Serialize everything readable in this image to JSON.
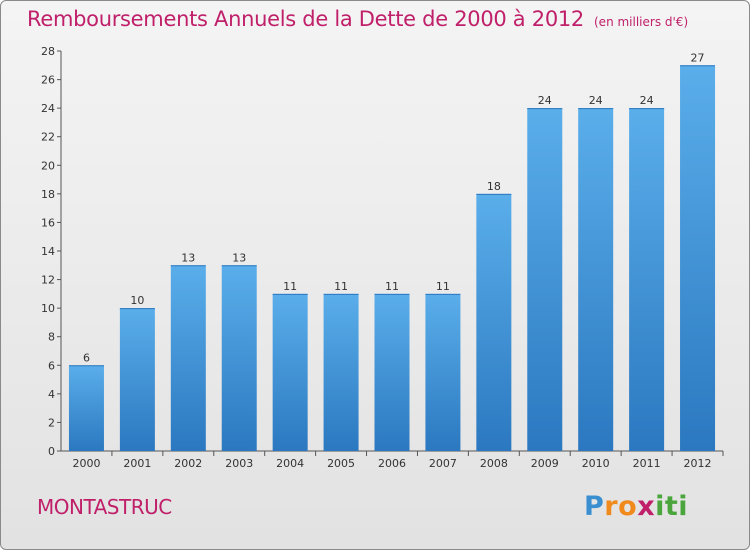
{
  "title": "Remboursements Annuels de la Dette de 2000 à 2012",
  "subtitle": "(en milliers d'€)",
  "commune": "MONTASTRUC",
  "logo": {
    "letters": [
      "P",
      "r",
      "o",
      "x",
      "i",
      "t",
      "i"
    ],
    "colors": [
      "#3a8fd0",
      "#f08a1c",
      "#f08a1c",
      "#c0206a",
      "#4aa63c",
      "#4aa63c",
      "#4aa63c"
    ]
  },
  "colors": {
    "bar": "#3b8fd6",
    "bar_light": "#5aaeea",
    "bar_dark": "#2b78c0",
    "accent": "#c0206a"
  },
  "chart_data": {
    "type": "bar",
    "categories": [
      "2000",
      "2001",
      "2002",
      "2003",
      "2004",
      "2005",
      "2006",
      "2007",
      "2008",
      "2009",
      "2010",
      "2011",
      "2012"
    ],
    "values": [
      6,
      10,
      13,
      13,
      11,
      11,
      11,
      11,
      18,
      24,
      24,
      24,
      27
    ],
    "title": "Remboursements Annuels de la Dette de 2000 à 2012",
    "xlabel": "",
    "ylabel": "",
    "ylim": [
      0,
      28
    ],
    "yticks": [
      0,
      2,
      4,
      6,
      8,
      10,
      12,
      14,
      16,
      18,
      20,
      22,
      24,
      26,
      28
    ],
    "grid": false,
    "data_labels": true
  }
}
